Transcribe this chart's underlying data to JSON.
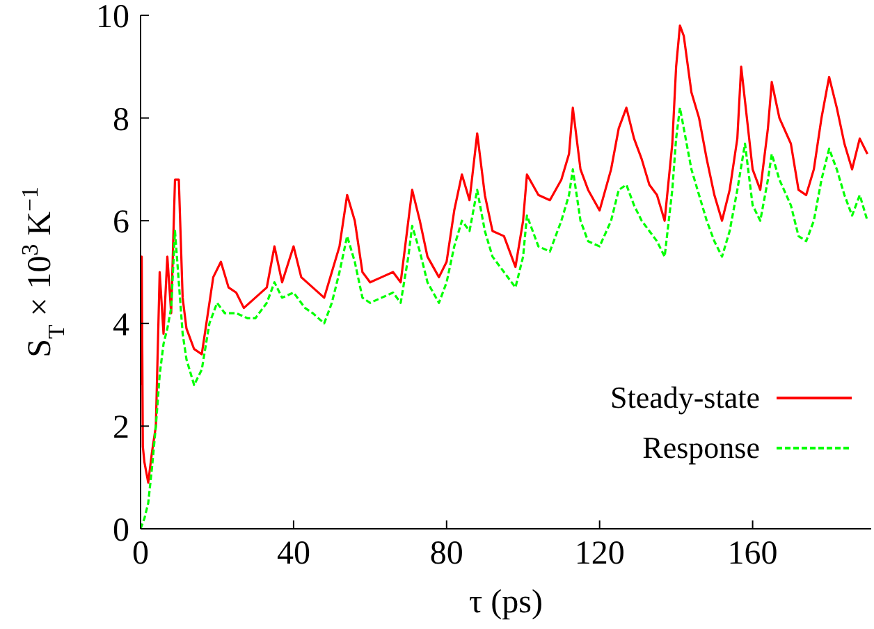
{
  "chart_data": {
    "type": "line",
    "xlabel": "τ (ps)",
    "ylabel": "S$_{T}$ × 10$^{3}$ K$^{−1}$",
    "xlim": [
      0,
      191
    ],
    "ylim": [
      0,
      10
    ],
    "xticks": [
      0,
      40,
      80,
      120,
      160
    ],
    "yticks": [
      0,
      2,
      4,
      6,
      8,
      10
    ],
    "grid": false,
    "legend": "bottom right",
    "marker": "none",
    "series": [
      {
        "name": "Steady-state",
        "color": "#ff0000",
        "line_style": "solid",
        "x": [
          0,
          0.3,
          0.6,
          1,
          2,
          3,
          4,
          5,
          6,
          7,
          8,
          9,
          10,
          11,
          12,
          14,
          16,
          17,
          19,
          21,
          23,
          25,
          27,
          30,
          33,
          35,
          37,
          40,
          42,
          45,
          48,
          50,
          52,
          54,
          56,
          58,
          60,
          63,
          66,
          68,
          70,
          71,
          73,
          75,
          78,
          80,
          82,
          84,
          86,
          88,
          90,
          92,
          95,
          98,
          100,
          101,
          104,
          107,
          110,
          112,
          113,
          115,
          117,
          120,
          123,
          125,
          127,
          129,
          131,
          133,
          135,
          137,
          139,
          140,
          141,
          142,
          144,
          146,
          148,
          150,
          152,
          154,
          156,
          157,
          160,
          162,
          164,
          165,
          167,
          170,
          172,
          174,
          176,
          178,
          180,
          182,
          184,
          186,
          188,
          190
        ],
        "values": [
          2.8,
          5.3,
          1.6,
          1.3,
          0.9,
          1.5,
          2.0,
          5.0,
          3.8,
          5.3,
          4.2,
          6.8,
          6.8,
          4.5,
          3.9,
          3.5,
          3.4,
          3.9,
          4.9,
          5.2,
          4.7,
          4.6,
          4.3,
          4.5,
          4.7,
          5.5,
          4.8,
          5.5,
          4.9,
          4.7,
          4.5,
          5.0,
          5.5,
          6.5,
          6.0,
          5.0,
          4.8,
          4.9,
          5.0,
          4.8,
          6.0,
          6.6,
          6.0,
          5.3,
          4.9,
          5.2,
          6.2,
          6.9,
          6.4,
          7.7,
          6.5,
          5.8,
          5.7,
          5.1,
          6.0,
          6.9,
          6.5,
          6.4,
          6.8,
          7.3,
          8.2,
          7.0,
          6.6,
          6.2,
          7.0,
          7.8,
          8.2,
          7.6,
          7.2,
          6.7,
          6.5,
          6.0,
          7.5,
          9.0,
          9.8,
          9.6,
          8.5,
          8.0,
          7.2,
          6.5,
          6.0,
          6.6,
          7.6,
          9.0,
          7.0,
          6.6,
          7.8,
          8.7,
          8.0,
          7.5,
          6.6,
          6.5,
          7.0,
          8.0,
          8.8,
          8.2,
          7.5,
          7.0,
          7.6,
          7.3
        ]
      },
      {
        "name": "Response",
        "color": "#00ff00",
        "line_style": "dashed",
        "x": [
          0,
          1,
          2,
          3,
          4,
          5,
          6,
          7,
          8,
          9,
          10,
          11,
          12,
          14,
          16,
          18,
          20,
          22,
          25,
          28,
          30,
          33,
          35,
          37,
          40,
          43,
          45,
          48,
          50,
          52,
          54,
          56,
          58,
          60,
          63,
          66,
          68,
          70,
          71,
          73,
          75,
          78,
          80,
          82,
          84,
          86,
          88,
          90,
          92,
          95,
          98,
          100,
          101,
          104,
          107,
          110,
          112,
          113,
          115,
          117,
          120,
          123,
          125,
          127,
          129,
          131,
          133,
          135,
          137,
          139,
          140,
          141,
          142,
          144,
          146,
          148,
          150,
          152,
          154,
          156,
          158,
          160,
          162,
          164,
          165,
          167,
          170,
          172,
          174,
          176,
          178,
          180,
          182,
          184,
          186,
          188,
          190
        ],
        "values": [
          0,
          0.2,
          0.5,
          1.2,
          2.0,
          3.0,
          3.6,
          3.9,
          4.3,
          5.8,
          4.8,
          3.8,
          3.3,
          2.8,
          3.1,
          4.0,
          4.4,
          4.2,
          4.2,
          4.1,
          4.1,
          4.4,
          4.8,
          4.5,
          4.6,
          4.3,
          4.2,
          4.0,
          4.4,
          5.0,
          5.7,
          5.2,
          4.5,
          4.4,
          4.5,
          4.6,
          4.4,
          5.3,
          5.9,
          5.4,
          4.8,
          4.4,
          4.8,
          5.5,
          6.0,
          5.8,
          6.6,
          5.8,
          5.3,
          5.0,
          4.7,
          5.3,
          6.1,
          5.5,
          5.4,
          6.0,
          6.5,
          7.0,
          6.0,
          5.6,
          5.5,
          6.0,
          6.6,
          6.7,
          6.3,
          6.0,
          5.8,
          5.6,
          5.3,
          6.6,
          7.6,
          8.2,
          7.8,
          7.0,
          6.5,
          6.0,
          5.6,
          5.3,
          5.8,
          6.6,
          7.5,
          6.3,
          6.0,
          6.8,
          7.3,
          6.8,
          6.3,
          5.7,
          5.6,
          6.0,
          6.8,
          7.4,
          7.0,
          6.5,
          6.1,
          6.5,
          6.0
        ]
      }
    ]
  }
}
